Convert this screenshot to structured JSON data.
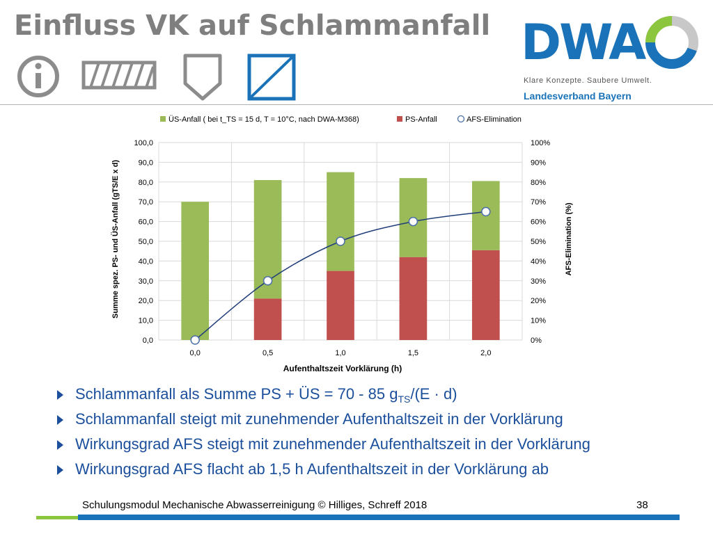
{
  "slide": {
    "title": "Einfluss VK auf Schlammanfall"
  },
  "logo": {
    "wordmark": "DWA",
    "tagline": "Klare Konzepte. Saubere Umwelt.",
    "region": "Landesverband Bayern"
  },
  "icons": [
    "info-icon",
    "hatched-bar-icon",
    "shield-icon",
    "diagonal-box-icon"
  ],
  "colors": {
    "title": "#7f7f7f",
    "brand_blue": "#1a73b8",
    "us_bar": "#9bbb59",
    "ps_bar": "#c0504d",
    "afs_line": "#1f3d7a",
    "bullet_text": "#1b4f9b",
    "accent_green": "#8cc63f"
  },
  "chart_data": {
    "type": "bar",
    "stacked": true,
    "categories": [
      "0,0",
      "0,5",
      "1,0",
      "1,5",
      "2,0"
    ],
    "series": [
      {
        "name": "PS-Anfall",
        "axis": "left",
        "color": "#c0504d",
        "values": [
          0,
          21,
          35,
          42,
          45.5
        ]
      },
      {
        "name": "ÜS-Anfall ( bei t_TS = 15 d, T = 10°C, nach DWA-M368)",
        "axis": "left",
        "color": "#9bbb59",
        "values": [
          70,
          60,
          50,
          40,
          35
        ]
      }
    ],
    "line_series": {
      "name": "AFS-Elimination",
      "axis": "right",
      "type": "scatter-smooth",
      "values": [
        0,
        30,
        50,
        60,
        65
      ]
    },
    "xlabel": "Aufenthaltszeit Vorklärung (h)",
    "ylabel": "Summe spez. PS- und ÜS-Anfall (gTS/E x d)",
    "y2label": "AFS-Elimination (%)",
    "ylim": [
      0,
      100
    ],
    "y2lim": [
      0,
      100
    ],
    "yticks": [
      "0,0",
      "10,0",
      "20,0",
      "30,0",
      "40,0",
      "50,0",
      "60,0",
      "70,0",
      "80,0",
      "90,0",
      "100,0"
    ],
    "y2ticks": [
      "0%",
      "10%",
      "20%",
      "30%",
      "40%",
      "50%",
      "60%",
      "70%",
      "80%",
      "90%",
      "100%"
    ],
    "legend_position": "top",
    "grid": true
  },
  "bullets": {
    "b1": {
      "main": "Schlammanfall als Summe PS + ÜS = 70 - 85 g",
      "sub": "TS",
      "tail": "/(E · d)"
    },
    "b2": "Schlammanfall steigt mit zunehmender Aufenthaltszeit in der Vorklärung",
    "b3": "Wirkungsgrad AFS steigt mit zunehmender Aufenthaltszeit in der Vorklärung",
    "b4": "Wirkungsgrad AFS flacht ab 1,5 h Aufenthaltszeit in der Vorklärung ab"
  },
  "footer": {
    "text": "Schulungsmodul Mechanische Abwasserreinigung © Hilliges, Schreff  2018",
    "page": "38"
  }
}
